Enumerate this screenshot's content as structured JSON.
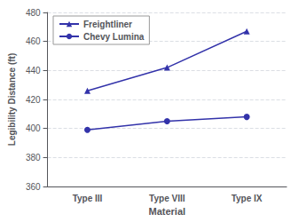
{
  "chart_data": {
    "type": "line",
    "categories": [
      "Type III",
      "Type VIII",
      "Type IX"
    ],
    "series": [
      {
        "name": "Freightliner",
        "color": "#3333aa",
        "marker": "triangle",
        "values": [
          426,
          442,
          467
        ]
      },
      {
        "name": "Chevy Lumina",
        "color": "#3333aa",
        "marker": "circle",
        "values": [
          399,
          405,
          408
        ]
      }
    ],
    "xlabel": "Material",
    "ylabel": "Legibility Distance (ft)",
    "ylim": [
      360,
      480
    ],
    "yticks": [
      360,
      380,
      400,
      420,
      440,
      460,
      480
    ],
    "grid": true,
    "legend": "upper left"
  }
}
